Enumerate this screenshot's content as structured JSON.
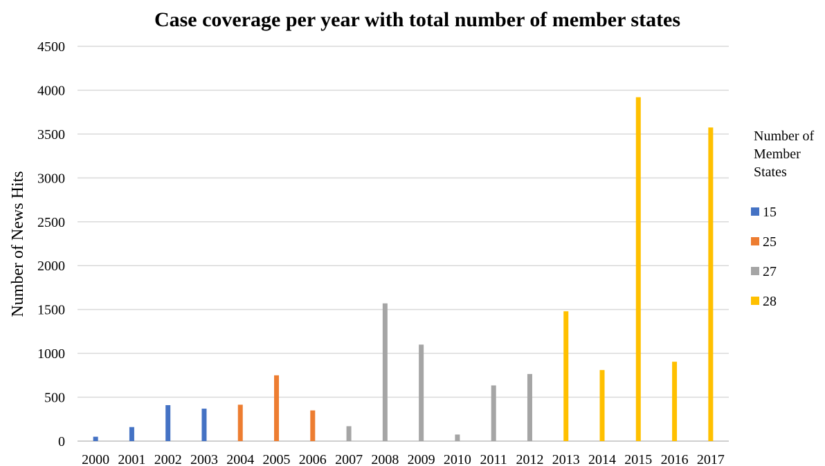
{
  "chart_data": {
    "type": "bar",
    "title": "Case coverage per year with total number of member states",
    "xlabel": "",
    "ylabel": "Number of News Hits",
    "ylim": [
      0,
      4500
    ],
    "yticks": [
      0,
      500,
      1000,
      1500,
      2000,
      2500,
      3000,
      3500,
      4000,
      4500
    ],
    "grid": true,
    "legend_position": "right",
    "legend_title_lines": [
      "Number of",
      "Member",
      "States"
    ],
    "categories": [
      "2000",
      "2001",
      "2002",
      "2003",
      "2004",
      "2005",
      "2006",
      "2007",
      "2008",
      "2009",
      "2010",
      "2011",
      "2012",
      "2013",
      "2014",
      "2015",
      "2016",
      "2017"
    ],
    "series": [
      {
        "name": "15",
        "color": "#4472C4",
        "values": [
          50,
          160,
          410,
          370,
          null,
          null,
          null,
          null,
          null,
          null,
          null,
          null,
          null,
          null,
          null,
          null,
          null,
          null
        ]
      },
      {
        "name": "25",
        "color": "#ED7D31",
        "values": [
          null,
          null,
          null,
          null,
          415,
          750,
          350,
          null,
          null,
          null,
          null,
          null,
          null,
          null,
          null,
          null,
          null,
          null
        ]
      },
      {
        "name": "27",
        "color": "#A5A5A5",
        "values": [
          null,
          null,
          null,
          null,
          null,
          null,
          null,
          170,
          1570,
          1100,
          75,
          635,
          765,
          null,
          null,
          null,
          null,
          null
        ]
      },
      {
        "name": "28",
        "color": "#FFC000",
        "values": [
          null,
          null,
          null,
          null,
          null,
          null,
          null,
          null,
          null,
          null,
          null,
          null,
          null,
          1480,
          810,
          3920,
          905,
          3575
        ]
      }
    ]
  }
}
